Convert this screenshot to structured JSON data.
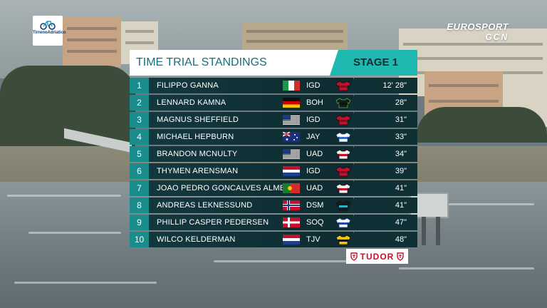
{
  "header": {
    "title": "TIME TRIAL STANDINGS",
    "stage": "STAGE 1"
  },
  "event_logo": {
    "name": "TirrenoAdriatico",
    "icon": "cycling-race-logo-icon"
  },
  "broadcaster": {
    "line1": "EUROSPORT",
    "line2": "GCN"
  },
  "sponsor": {
    "label": "TUDOR",
    "icon": "shield-logo-icon"
  },
  "colors": {
    "accent": "#1fb9b1",
    "row_bg": "#12383e",
    "position_bg": "#1a8c8c",
    "title_text": "#15707a"
  },
  "standings": [
    {
      "pos": "1",
      "rider": "FILIPPO GANNA",
      "flag": "italy",
      "team": "IGD",
      "jersey": "ineos-jersey-icon",
      "time": "12' 28\""
    },
    {
      "pos": "2",
      "rider": "LENNARD KAMNA",
      "flag": "germany",
      "team": "BOH",
      "jersey": "bora-jersey-icon",
      "time": "28\""
    },
    {
      "pos": "3",
      "rider": "MAGNUS SHEFFIELD",
      "flag": "usa",
      "team": "IGD",
      "jersey": "ineos-jersey-icon",
      "time": "31\""
    },
    {
      "pos": "4",
      "rider": "MICHAEL HEPBURN",
      "flag": "australia",
      "team": "JAY",
      "jersey": "jayco-jersey-icon",
      "time": "33\""
    },
    {
      "pos": "5",
      "rider": "BRANDON MCNULTY",
      "flag": "usa",
      "team": "UAD",
      "jersey": "uae-jersey-icon",
      "time": "34\""
    },
    {
      "pos": "6",
      "rider": "THYMEN ARENSMAN",
      "flag": "netherlands",
      "team": "IGD",
      "jersey": "ineos-jersey-icon",
      "time": "39\""
    },
    {
      "pos": "7",
      "rider": "JOAO PEDRO GONCALVES ALMEIDA",
      "flag": "portugal",
      "team": "UAD",
      "jersey": "uae-jersey-icon",
      "time": "41\""
    },
    {
      "pos": "8",
      "rider": "ANDREAS LEKNESSUND",
      "flag": "norway",
      "team": "DSM",
      "jersey": "dsm-jersey-icon",
      "time": "41\""
    },
    {
      "pos": "9",
      "rider": "PHILLIP CASPER PEDERSEN",
      "flag": "denmark",
      "team": "SOQ",
      "jersey": "soudal-jersey-icon",
      "time": "47\""
    },
    {
      "pos": "10",
      "rider": "WILCO KELDERMAN",
      "flag": "netherlands",
      "team": "TJV",
      "jersey": "jumbo-jersey-icon",
      "time": "48\""
    }
  ]
}
